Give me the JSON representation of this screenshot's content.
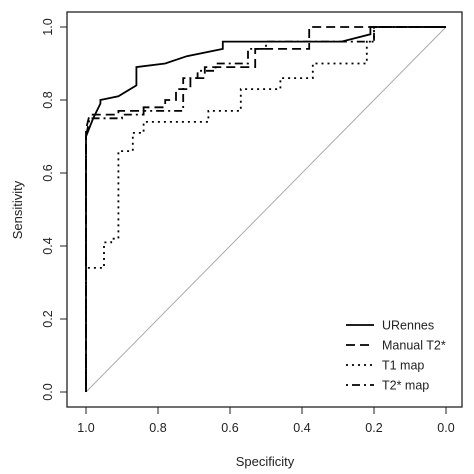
{
  "chart_data": {
    "type": "line",
    "xlabel": "Specificity",
    "ylabel": "Sensitivity",
    "xlim": [
      1.0,
      0.0
    ],
    "ylim": [
      0.0,
      1.0
    ],
    "x_reversed": true,
    "x_ticks": [
      1.0,
      0.8,
      0.6,
      0.4,
      0.2,
      0.0
    ],
    "x_tick_labels": [
      "1.0",
      "0.8",
      "0.6",
      "0.4",
      "0.2",
      "0.0"
    ],
    "y_ticks": [
      0.0,
      0.2,
      0.4,
      0.6,
      0.8,
      1.0
    ],
    "y_tick_labels": [
      "0.0",
      "0.2",
      "0.4",
      "0.6",
      "0.8",
      "1.0"
    ],
    "grid": false,
    "legend_position": "bottom-right",
    "reference_line": {
      "from": [
        1.0,
        0.0
      ],
      "to": [
        0.0,
        1.0
      ],
      "color": "#aaaaaa"
    },
    "series": [
      {
        "name": "URennes",
        "dash": "solid",
        "color": "#000000",
        "x": [
          1.0,
          1.0,
          0.98,
          0.96,
          0.96,
          0.96,
          0.91,
          0.91,
          0.86,
          0.86,
          0.78,
          0.72,
          0.62,
          0.62,
          0.29,
          0.29,
          0.21,
          0.21,
          0.0
        ],
        "y": [
          0.0,
          0.7,
          0.75,
          0.79,
          0.79,
          0.8,
          0.81,
          0.81,
          0.84,
          0.89,
          0.9,
          0.92,
          0.94,
          0.96,
          0.96,
          0.96,
          0.98,
          1.0,
          1.0
        ]
      },
      {
        "name": "Manual T2*",
        "dash": "dashed",
        "color": "#000000",
        "x": [
          1.0,
          1.0,
          0.99,
          0.96,
          0.96,
          0.91,
          0.91,
          0.84,
          0.84,
          0.78,
          0.78,
          0.75,
          0.75,
          0.71,
          0.71,
          0.67,
          0.67,
          0.53,
          0.53,
          0.38,
          0.38,
          0.0
        ],
        "y": [
          0.0,
          0.72,
          0.76,
          0.76,
          0.76,
          0.76,
          0.77,
          0.77,
          0.78,
          0.78,
          0.8,
          0.8,
          0.83,
          0.83,
          0.86,
          0.86,
          0.89,
          0.89,
          0.94,
          0.94,
          1.0,
          1.0
        ]
      },
      {
        "name": "T1 map",
        "dash": "dotted",
        "color": "#000000",
        "x": [
          1.0,
          1.0,
          0.95,
          0.95,
          0.93,
          0.93,
          0.91,
          0.91,
          0.87,
          0.87,
          0.84,
          0.84,
          0.66,
          0.66,
          0.57,
          0.57,
          0.46,
          0.46,
          0.37,
          0.37,
          0.22,
          0.22,
          0.2,
          0.2,
          0.0
        ],
        "y": [
          0.0,
          0.34,
          0.34,
          0.41,
          0.41,
          0.42,
          0.42,
          0.66,
          0.66,
          0.71,
          0.71,
          0.74,
          0.74,
          0.77,
          0.77,
          0.83,
          0.83,
          0.86,
          0.86,
          0.9,
          0.9,
          0.96,
          0.96,
          1.0,
          1.0
        ]
      },
      {
        "name": "T2* map",
        "dash": "dashdot",
        "color": "#000000",
        "x": [
          1.0,
          1.0,
          0.99,
          0.95,
          0.95,
          0.9,
          0.9,
          0.84,
          0.84,
          0.73,
          0.73,
          0.69,
          0.69,
          0.64,
          0.64,
          0.55,
          0.55,
          0.5,
          0.5,
          0.2,
          0.2,
          0.0
        ],
        "y": [
          0.0,
          0.7,
          0.75,
          0.75,
          0.75,
          0.75,
          0.76,
          0.76,
          0.77,
          0.77,
          0.86,
          0.86,
          0.88,
          0.88,
          0.9,
          0.9,
          0.94,
          0.94,
          0.96,
          0.96,
          1.0,
          1.0
        ]
      }
    ]
  }
}
